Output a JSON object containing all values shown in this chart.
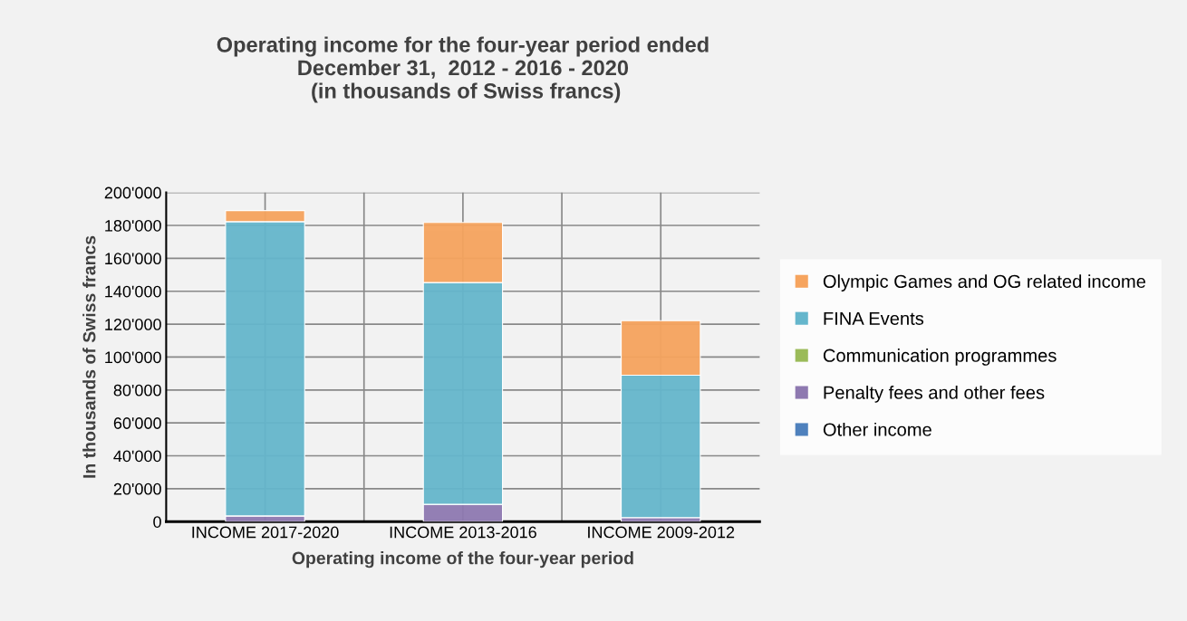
{
  "chart_data": {
    "type": "bar",
    "stacked": true,
    "title": "Operating income for the four-year period ended\nDecember 31,  2012 - 2016 - 2020\n (in thousands of Swiss francs)",
    "xlabel": "Operating income of the four-year period",
    "ylabel": "In thousands of Swiss francs",
    "categories": [
      "INCOME 2017-2020",
      "INCOME 2013-2016",
      "INCOME 2009-2012"
    ],
    "series": [
      {
        "name": "Other income",
        "color": "#4f81bd",
        "values": [
          null,
          null,
          null
        ]
      },
      {
        "name": "Penalty fees and other fees",
        "color": "#8e79b0",
        "values": [
          3500,
          10500,
          2500
        ]
      },
      {
        "name": "Communication programmes",
        "color": "#9bbb59",
        "values": [
          0,
          0,
          0
        ]
      },
      {
        "name": "FINA Events",
        "color": "#65b6cc",
        "values": [
          178800,
          134800,
          86500
        ]
      },
      {
        "name": "Olympic Games and OG related income",
        "color": "#f6a45e",
        "values": [
          6700,
          36500,
          33100
        ]
      }
    ],
    "ylim": [
      0,
      200000
    ],
    "yticks": [
      {
        "value": 0,
        "label": "0"
      },
      {
        "value": 20000,
        "label": "20'000"
      },
      {
        "value": 40000,
        "label": "40'000"
      },
      {
        "value": 60000,
        "label": "60'000"
      },
      {
        "value": 80000,
        "label": "80'000"
      },
      {
        "value": 100000,
        "label": "100'000"
      },
      {
        "value": 120000,
        "label": "120'000"
      },
      {
        "value": 140000,
        "label": "140'000"
      },
      {
        "value": 160000,
        "label": "160'000"
      },
      {
        "value": 180000,
        "label": "180'000"
      },
      {
        "value": 200000,
        "label": "200'000"
      }
    ],
    "grid": true,
    "legend": "right"
  }
}
